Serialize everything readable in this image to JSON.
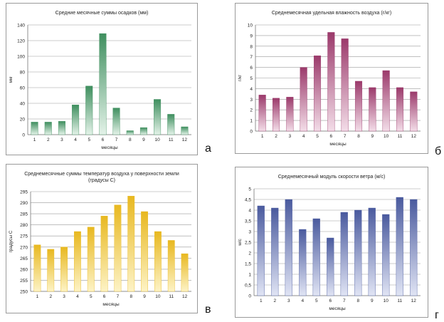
{
  "charts": [
    {
      "letter": "а",
      "chart_data": {
        "type": "bar",
        "title": "Средние месячные суммы осадков (мм)",
        "xlabel": "месяцы",
        "ylabel": "мм",
        "categories": [
          "1",
          "2",
          "3",
          "4",
          "5",
          "6",
          "7",
          "8",
          "9",
          "10",
          "11",
          "12"
        ],
        "values": [
          16,
          16,
          17,
          38,
          62,
          129,
          34,
          5,
          9,
          45,
          26,
          10
        ],
        "ylim": [
          0,
          140
        ],
        "yticks": [
          0,
          20,
          40,
          60,
          80,
          100,
          120,
          140
        ],
        "ytick_labels": [
          "0",
          "20",
          "40",
          "60",
          "80",
          "100",
          "120",
          "140"
        ],
        "color_dark": "#3f8f5f",
        "color_light": "#e3f2e8"
      }
    },
    {
      "letter": "б",
      "chart_data": {
        "type": "bar",
        "title": "Среднемесячная удельная влажность воздуха (г/кг)",
        "xlabel": "месяцы",
        "ylabel": "г/кг",
        "categories": [
          "1",
          "2",
          "3",
          "4",
          "5",
          "6",
          "7",
          "8",
          "9",
          "10",
          "11",
          "12"
        ],
        "values": [
          3.4,
          3.1,
          3.2,
          6.0,
          7.1,
          9.3,
          8.7,
          4.7,
          4.1,
          5.7,
          4.1,
          3.7
        ],
        "ylim": [
          0,
          10
        ],
        "yticks": [
          0,
          1,
          2,
          3,
          4,
          5,
          6,
          7,
          8,
          9,
          10
        ],
        "ytick_labels": [
          "0",
          "1",
          "2",
          "3",
          "4",
          "5",
          "6",
          "7",
          "8",
          "9",
          "10"
        ],
        "color_dark": "#9b3a6b",
        "color_light": "#f3dde8"
      }
    },
    {
      "letter": "в",
      "chart_data": {
        "type": "bar",
        "title": "Среднемесячные суммы температур воздуха у поверхности земли (градусы С)",
        "xlabel": "месяцы",
        "ylabel": "градусы С",
        "categories": [
          "1",
          "2",
          "3",
          "4",
          "5",
          "6",
          "7",
          "8",
          "9",
          "10",
          "11",
          "12"
        ],
        "values": [
          271,
          269,
          270,
          277,
          279,
          284,
          289,
          293,
          286,
          277,
          273,
          267
        ],
        "ylim": [
          250,
          295
        ],
        "yticks": [
          250,
          255,
          260,
          265,
          270,
          275,
          280,
          285,
          290,
          295
        ],
        "ytick_labels": [
          "250",
          "255",
          "260",
          "265",
          "270",
          "275",
          "280",
          "285",
          "290",
          "295"
        ],
        "color_dark": "#e8b820",
        "color_light": "#fdf3c6"
      }
    },
    {
      "letter": "г",
      "chart_data": {
        "type": "bar",
        "title": "Среднемесячный модуль скорости ветра (м/с)",
        "xlabel": "месяцы",
        "ylabel": "м/с",
        "categories": [
          "1",
          "2",
          "3",
          "4",
          "5",
          "6",
          "7",
          "8",
          "9",
          "10",
          "11",
          "12"
        ],
        "values": [
          4.2,
          4.1,
          4.5,
          3.1,
          3.6,
          2.7,
          3.9,
          4.0,
          4.1,
          3.8,
          4.6,
          4.5
        ],
        "ylim": [
          0,
          5
        ],
        "yticks": [
          0,
          0.5,
          1,
          1.5,
          2,
          2.5,
          3,
          3.5,
          4,
          4.5,
          5
        ],
        "ytick_labels": [
          "0",
          "0,5",
          "1",
          "1,5",
          "2",
          "2,5",
          "3",
          "3,5",
          "4",
          "4,5",
          "5"
        ],
        "color_dark": "#4a5a9e",
        "color_light": "#e0e4f4"
      }
    }
  ]
}
